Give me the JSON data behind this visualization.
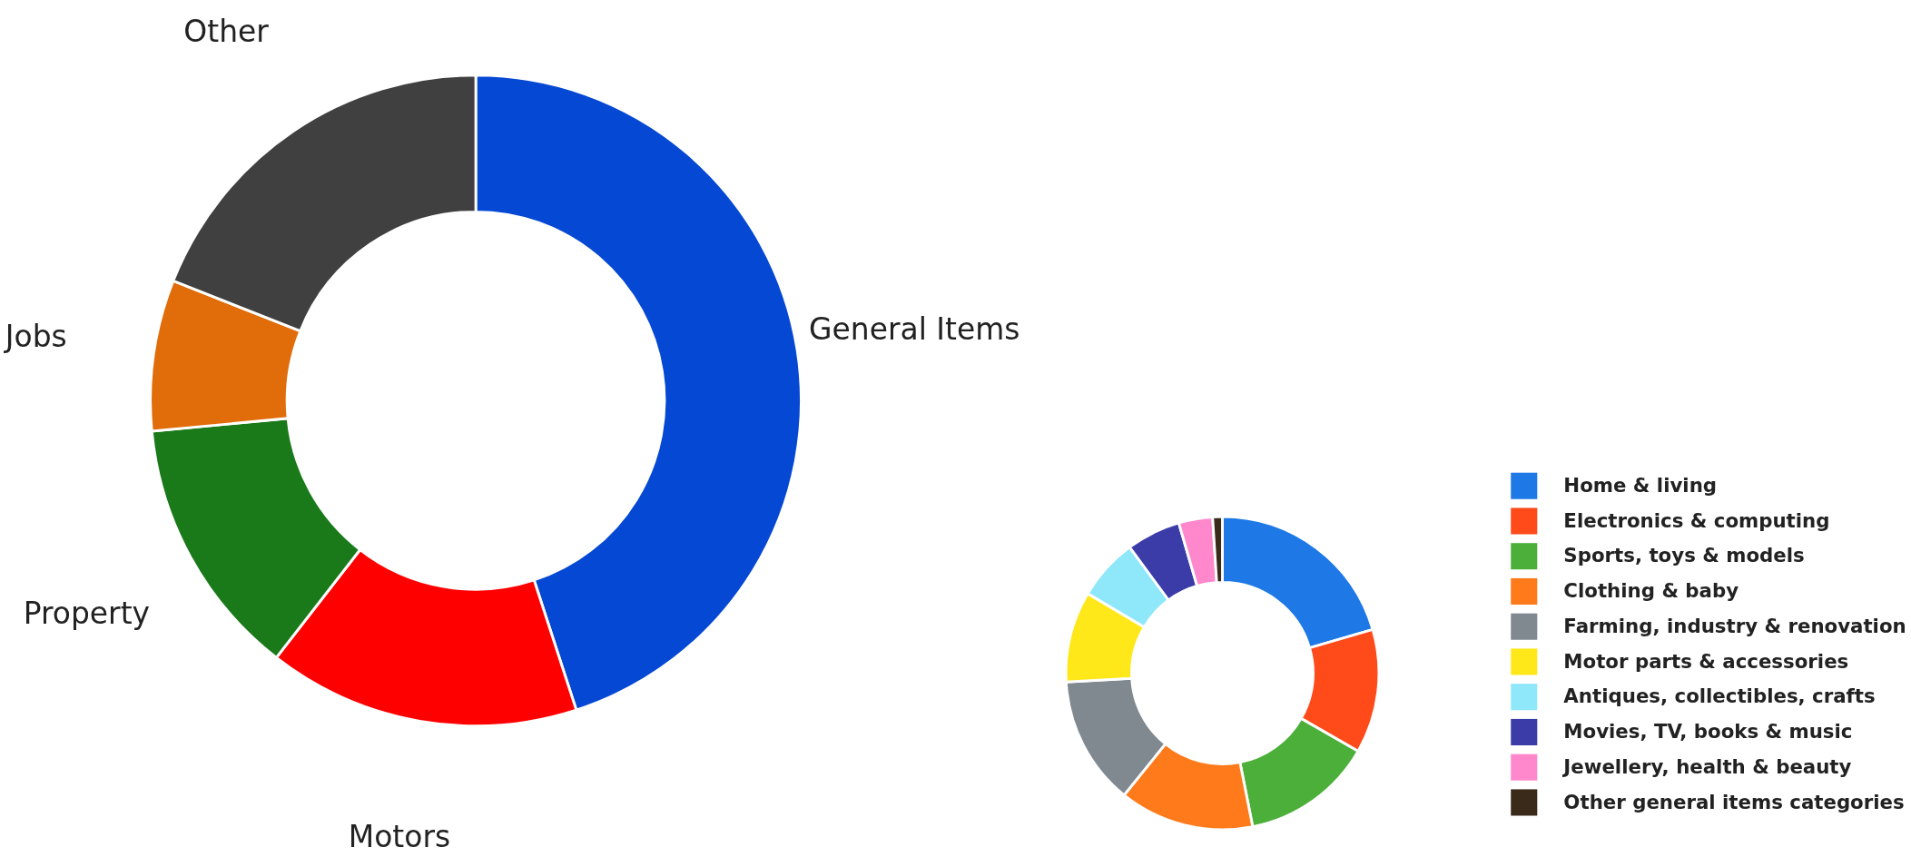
{
  "chart_data": [
    {
      "type": "donut",
      "categories": [
        "General Items",
        "Motors",
        "Property",
        "Jobs",
        "Other"
      ],
      "values": [
        45,
        15.5,
        13,
        7.5,
        19
      ],
      "colors": [
        "#0548d4",
        "#ff0000",
        "#1a7a1a",
        "#e06c0a",
        "#404040"
      ],
      "legend": false
    },
    {
      "type": "donut",
      "categories": [
        "Home & living",
        "Electronics & computing",
        "Sports, toys & models",
        "Clothing & baby",
        "Farming, industry & renovation",
        "Motor parts & accessories",
        "Antiques, collectibles, crafts",
        "Movies, TV, books & music",
        "Jewellery, health & beauty",
        "Other general items categories"
      ],
      "values": [
        20.5,
        12.8,
        13.6,
        13.9,
        13.3,
        9.4,
        6.4,
        5.6,
        3.5,
        1.0
      ],
      "colors": [
        "#1e78e6",
        "#ff4a1a",
        "#4caf3a",
        "#ff7a1a",
        "#808890",
        "#ffe81a",
        "#8ee8fa",
        "#3c3ca8",
        "#ff88cc",
        "#3a2a1a"
      ],
      "legend": "right"
    }
  ]
}
